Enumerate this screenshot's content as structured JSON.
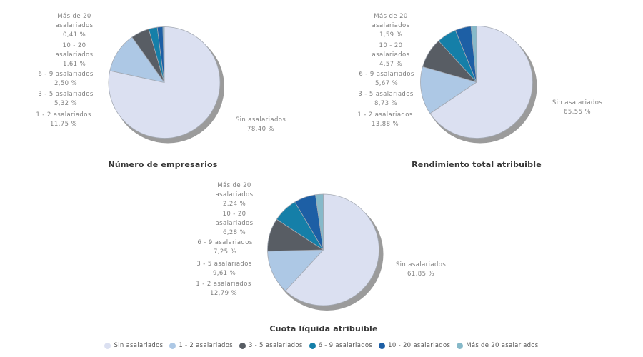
{
  "styles": {
    "background": "#ffffff",
    "label_color": "#7f7f7f",
    "title_color": "#363636",
    "legend_text_color": "#555555",
    "slice_stroke": "#a3a9b3",
    "shadow_color": "#9b9b9b"
  },
  "legend": {
    "items": [
      {
        "label": "Sin asalariados",
        "color": "#dbe0f1"
      },
      {
        "label": "1 - 2 asalariados",
        "color": "#adc8e5"
      },
      {
        "label": "3 - 5 asalariados",
        "color": "#585d64"
      },
      {
        "label": "6 - 9 asalariados",
        "color": "#157fa8"
      },
      {
        "label": "10 - 20 asalariados",
        "color": "#1d5fa5"
      },
      {
        "label": "Más de 20 asalariados",
        "color": "#86b9c9"
      }
    ]
  },
  "category_lines": [
    [
      "Sin asalariados"
    ],
    [
      "1 - 2 asalariados"
    ],
    [
      "3 - 5 asalariados"
    ],
    [
      "6 - 9 asalariados"
    ],
    [
      "10 - 20",
      "asalariados"
    ],
    [
      "Más de 20",
      "asalariados"
    ]
  ],
  "chart_data": [
    {
      "type": "pie",
      "title": "Número de empresarios",
      "categories": [
        "Sin asalariados",
        "1 - 2 asalariados",
        "3 - 5 asalariados",
        "6 - 9 asalariados",
        "10 - 20 asalariados",
        "Más de 20 asalariados"
      ],
      "values": [
        78.4,
        11.75,
        5.32,
        2.5,
        1.61,
        0.41
      ],
      "value_labels": [
        "78,40 %",
        "11,75 %",
        "5,32 %",
        "2,50 %",
        "1,61 %",
        "0,41 %"
      ],
      "start_angle_deg": 0,
      "direction": "clockwise",
      "legend_position": "bottom-shared"
    },
    {
      "type": "pie",
      "title": "Rendimiento total atribuible",
      "categories": [
        "Sin asalariados",
        "1 - 2 asalariados",
        "3 - 5 asalariados",
        "6 - 9 asalariados",
        "10 - 20 asalariados",
        "Más de 20 asalariados"
      ],
      "values": [
        65.55,
        13.88,
        8.73,
        5.67,
        4.57,
        1.59
      ],
      "value_labels": [
        "65,55 %",
        "13,88 %",
        "8,73 %",
        "5,67 %",
        "4,57 %",
        "1,59 %"
      ],
      "start_angle_deg": 0,
      "direction": "clockwise",
      "legend_position": "bottom-shared"
    },
    {
      "type": "pie",
      "title": "Cuota líquida atribuible",
      "categories": [
        "Sin asalariados",
        "1 - 2 asalariados",
        "3 - 5 asalariados",
        "6 - 9 asalariados",
        "10 - 20 asalariados",
        "Más de 20 asalariados"
      ],
      "values": [
        61.85,
        12.79,
        9.61,
        7.25,
        6.28,
        2.24
      ],
      "value_labels": [
        "61,85 %",
        "12,79 %",
        "9,61 %",
        "7,25 %",
        "6,28 %",
        "2,24 %"
      ],
      "start_angle_deg": 0,
      "direction": "clockwise",
      "legend_position": "bottom-shared"
    }
  ]
}
